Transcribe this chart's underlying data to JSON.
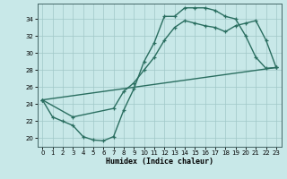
{
  "xlabel": "Humidex (Indice chaleur)",
  "bg_color": "#c8e8e8",
  "line_color": "#2a6e60",
  "grid_color": "#a0c8c8",
  "xlim": [
    -0.5,
    23.5
  ],
  "ylim": [
    19.0,
    35.8
  ],
  "xticks": [
    0,
    1,
    2,
    3,
    4,
    5,
    6,
    7,
    8,
    9,
    10,
    11,
    12,
    13,
    14,
    15,
    16,
    17,
    18,
    19,
    20,
    21,
    22,
    23
  ],
  "yticks": [
    20,
    22,
    24,
    26,
    28,
    30,
    32,
    34
  ],
  "curve1_x": [
    0,
    1,
    2,
    3,
    4,
    5,
    6,
    7,
    8,
    9,
    10,
    11,
    12,
    13,
    14,
    15,
    16,
    17,
    18,
    19,
    20,
    21,
    22,
    23
  ],
  "curve1_y": [
    24.5,
    22.5,
    22.0,
    21.5,
    20.2,
    19.8,
    19.7,
    20.2,
    23.3,
    25.8,
    29.0,
    31.2,
    34.3,
    34.3,
    35.3,
    35.3,
    35.3,
    35.0,
    34.3,
    34.0,
    32.0,
    29.5,
    28.2,
    28.3
  ],
  "curve2_x": [
    0,
    3,
    7,
    8,
    9,
    10,
    11,
    12,
    13,
    14,
    15,
    16,
    17,
    18,
    19,
    20,
    21,
    22,
    23
  ],
  "curve2_y": [
    24.5,
    22.5,
    23.5,
    25.5,
    26.5,
    28.0,
    29.5,
    31.5,
    33.0,
    33.8,
    33.5,
    33.2,
    33.0,
    32.5,
    33.2,
    33.5,
    33.8,
    31.5,
    28.3
  ],
  "curve3_x": [
    0,
    23
  ],
  "curve3_y": [
    24.5,
    28.3
  ]
}
